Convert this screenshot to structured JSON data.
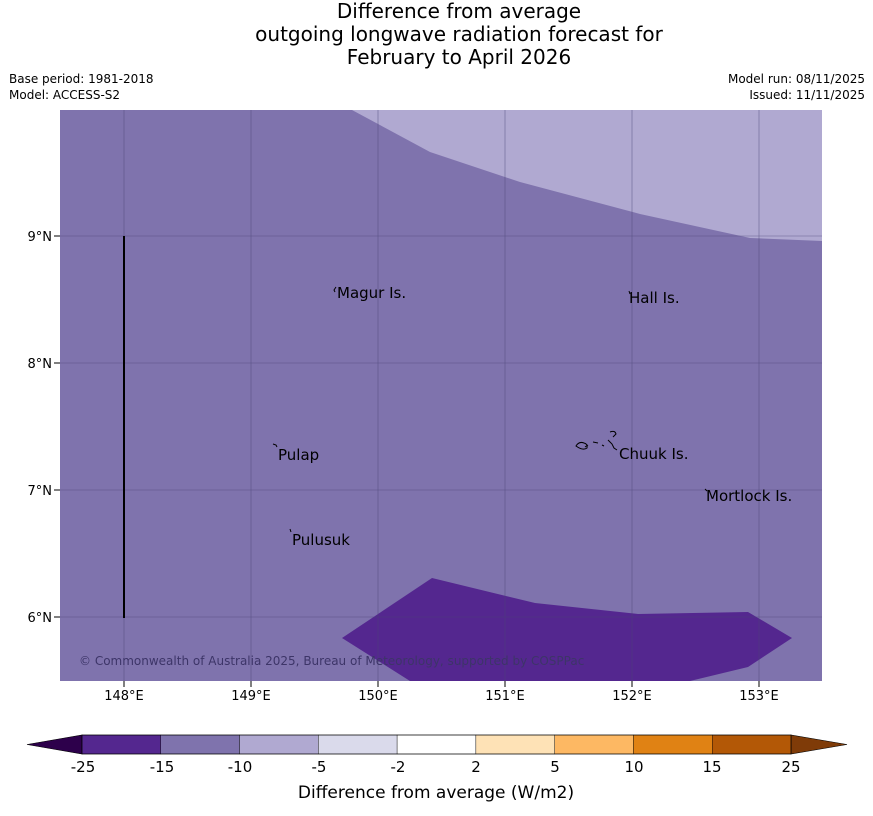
{
  "title_lines": [
    "Difference from average",
    "outgoing longwave radiation forecast for",
    "February to April 2026"
  ],
  "meta": {
    "base_period": "Base period: 1981-2018",
    "model": "Model: ACCESS-S2",
    "model_run": "Model run: 08/11/2025",
    "issued": "Issued: 11/11/2025"
  },
  "map": {
    "x_ticks": [
      "148°E",
      "149°E",
      "150°E",
      "151°E",
      "152°E",
      "153°E"
    ],
    "y_ticks": [
      "9°N",
      "8°N",
      "7°N",
      "6°N"
    ],
    "places": [
      {
        "name": "Magur Is."
      },
      {
        "name": "Hall Is."
      },
      {
        "name": "Pulap"
      },
      {
        "name": "Chuuk Is."
      },
      {
        "name": "Mortlock Is."
      },
      {
        "name": "Pulusuk"
      }
    ],
    "copyright": "© Commonwealth of Australia 2025, Bureau of Meteorology, supported by COSPPac",
    "colors": {
      "band_minus25_minus15": "#54278f",
      "band_minus15_minus10": "#7f73ad",
      "band_minus10_minus5": "#b0a9d1"
    }
  },
  "colorbar": {
    "title": "Difference from average (W/m2)",
    "tick_labels": [
      "-25",
      "-15",
      "-10",
      "-5",
      "-2",
      "2",
      "5",
      "10",
      "15",
      "25"
    ],
    "colors": [
      "#54278f",
      "#7f73ad",
      "#b0a9d1",
      "#dadaeb",
      "#ffffff",
      "#fee2b6",
      "#fdb863",
      "#e08214",
      "#b35806"
    ],
    "extend_low_color": "#2d004b",
    "extend_high_color": "#7f3b08"
  }
}
